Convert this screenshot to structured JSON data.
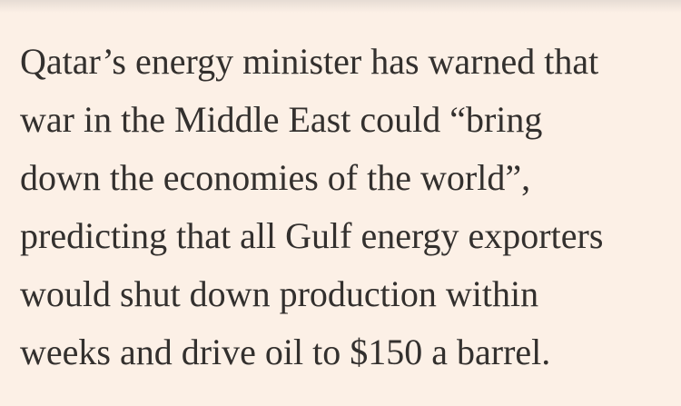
{
  "article": {
    "lines": [
      "Qatar’s energy minister has warned that",
      "war in the Middle East could “bring",
      "down the economies of the world”,",
      "predicting that all Gulf energy exporters",
      "would shut down production within",
      "weeks and drive oil to $150 a barrel."
    ]
  }
}
